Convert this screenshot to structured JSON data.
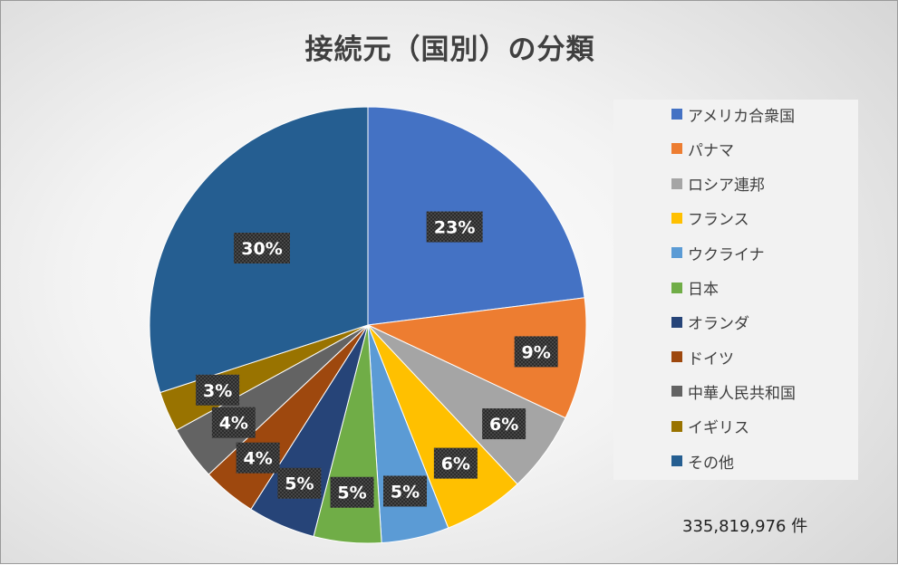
{
  "chart_data": {
    "type": "pie",
    "title": "接続元（国別）の分類",
    "slices": [
      {
        "name": "アメリカ合衆国",
        "value": 23,
        "label": "23%",
        "color": "#4472C4"
      },
      {
        "name": "パナマ",
        "value": 9,
        "label": "9%",
        "color": "#ED7D31"
      },
      {
        "name": "ロシア連邦",
        "value": 6,
        "label": "6%",
        "color": "#A5A5A5"
      },
      {
        "name": "フランス",
        "value": 6,
        "label": "6%",
        "color": "#FFC000"
      },
      {
        "name": "ウクライナ",
        "value": 5,
        "label": "5%",
        "color": "#5B9BD5"
      },
      {
        "name": "日本",
        "value": 5,
        "label": "5%",
        "color": "#70AD47"
      },
      {
        "name": "オランダ",
        "value": 5,
        "label": "5%",
        "color": "#264478"
      },
      {
        "name": "ドイツ",
        "value": 4,
        "label": "4%",
        "color": "#9E480E"
      },
      {
        "name": "中華人民共和国",
        "value": 4,
        "label": "4%",
        "color": "#636363"
      },
      {
        "name": "イギリス",
        "value": 3,
        "label": "3%",
        "color": "#997300"
      },
      {
        "name": "その他",
        "value": 30,
        "label": "30%",
        "color": "#255E91"
      }
    ],
    "legend_position": "right",
    "total_label": "335,819,976 件"
  }
}
